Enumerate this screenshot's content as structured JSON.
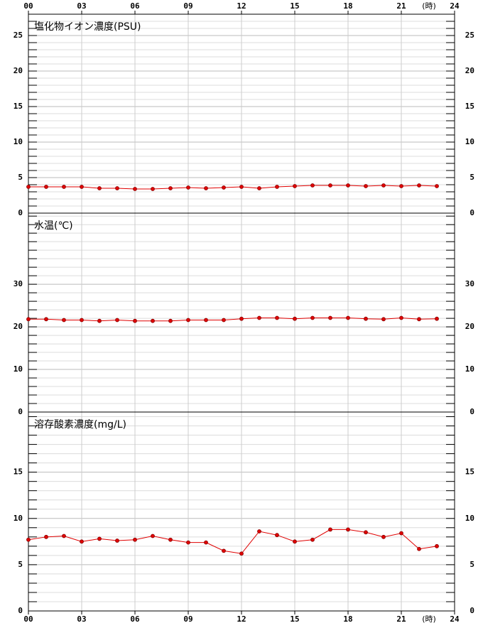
{
  "chart_data": [
    {
      "type": "line",
      "title": "塩化物イオン濃度(PSU)",
      "xlabel": "(時)",
      "x": [
        0,
        1,
        2,
        3,
        4,
        5,
        6,
        7,
        8,
        9,
        10,
        11,
        12,
        13,
        14,
        15,
        16,
        17,
        18,
        19,
        20,
        21,
        22,
        23
      ],
      "xlim": [
        0,
        24
      ],
      "xticks": [
        {
          "value": 0,
          "label": "00"
        },
        {
          "value": 3,
          "label": "03"
        },
        {
          "value": 6,
          "label": "06"
        },
        {
          "value": 9,
          "label": "09"
        },
        12,
        15,
        18,
        21,
        24
      ],
      "ylim": [
        0,
        28
      ],
      "yticks": [
        0,
        5,
        10,
        15,
        20,
        25
      ],
      "minor_yticks": [
        1,
        2,
        3,
        4,
        6,
        7,
        8,
        9,
        11,
        12,
        13,
        14,
        16,
        17,
        18,
        19,
        21,
        22,
        23,
        24,
        26,
        27
      ],
      "series": [
        {
          "color": "#e00000",
          "values": [
            3.7,
            3.7,
            3.7,
            3.7,
            3.5,
            3.5,
            3.4,
            3.4,
            3.5,
            3.6,
            3.5,
            3.6,
            3.7,
            3.5,
            3.7,
            3.8,
            3.9,
            3.9,
            3.9,
            3.8,
            3.9,
            3.8,
            3.9,
            3.8
          ]
        }
      ]
    },
    {
      "type": "line",
      "title": "水温(℃)",
      "x": [
        0,
        1,
        2,
        3,
        4,
        5,
        6,
        7,
        8,
        9,
        10,
        11,
        12,
        13,
        14,
        15,
        16,
        17,
        18,
        19,
        20,
        21,
        22,
        23
      ],
      "xlim": [
        0,
        24
      ],
      "xticks": [
        {
          "value": 0,
          "label": "00"
        },
        {
          "value": 3,
          "label": "03"
        },
        {
          "value": 6,
          "label": "06"
        },
        {
          "value": 9,
          "label": "09"
        },
        12,
        15,
        18,
        21,
        24
      ],
      "ylim": [
        0,
        46.7
      ],
      "yticks": [
        0,
        10,
        20,
        30
      ],
      "minor_yticks": [
        2,
        4,
        6,
        8,
        12,
        14,
        16,
        18,
        22,
        24,
        26,
        28,
        32,
        34,
        36,
        38,
        40,
        42,
        44,
        46
      ],
      "series": [
        {
          "color": "#e00000",
          "values": [
            21.8,
            21.8,
            21.6,
            21.6,
            21.4,
            21.6,
            21.4,
            21.4,
            21.4,
            21.6,
            21.6,
            21.6,
            21.9,
            22.1,
            22.1,
            21.9,
            22.1,
            22.1,
            22.1,
            21.9,
            21.8,
            22.1,
            21.8,
            21.9
          ]
        }
      ]
    },
    {
      "type": "line",
      "title": "溶存酸素濃度(mg/L)",
      "xlabel": "(時)",
      "x": [
        0,
        1,
        2,
        3,
        4,
        5,
        6,
        7,
        8,
        9,
        10,
        11,
        12,
        13,
        14,
        15,
        16,
        17,
        18,
        19,
        20,
        21,
        22,
        23
      ],
      "xlim": [
        0,
        24
      ],
      "xticks": [
        {
          "value": 0,
          "label": "00"
        },
        {
          "value": 3,
          "label": "03"
        },
        {
          "value": 6,
          "label": "06"
        },
        {
          "value": 9,
          "label": "09"
        },
        12,
        15,
        18,
        21,
        24
      ],
      "ylim": [
        0,
        21.5
      ],
      "yticks": [
        0,
        5,
        10,
        15
      ],
      "minor_yticks": [
        1,
        2,
        3,
        4,
        6,
        7,
        8,
        9,
        11,
        12,
        13,
        14,
        16,
        17,
        18,
        19,
        20,
        21
      ],
      "series": [
        {
          "color": "#e00000",
          "values": [
            7.7,
            8.0,
            8.1,
            7.5,
            7.8,
            7.6,
            7.7,
            8.1,
            7.7,
            7.4,
            7.4,
            6.5,
            6.2,
            8.6,
            8.2,
            7.5,
            7.7,
            8.8,
            8.8,
            8.5,
            8.0,
            8.4,
            6.7,
            7.0
          ]
        }
      ]
    }
  ]
}
